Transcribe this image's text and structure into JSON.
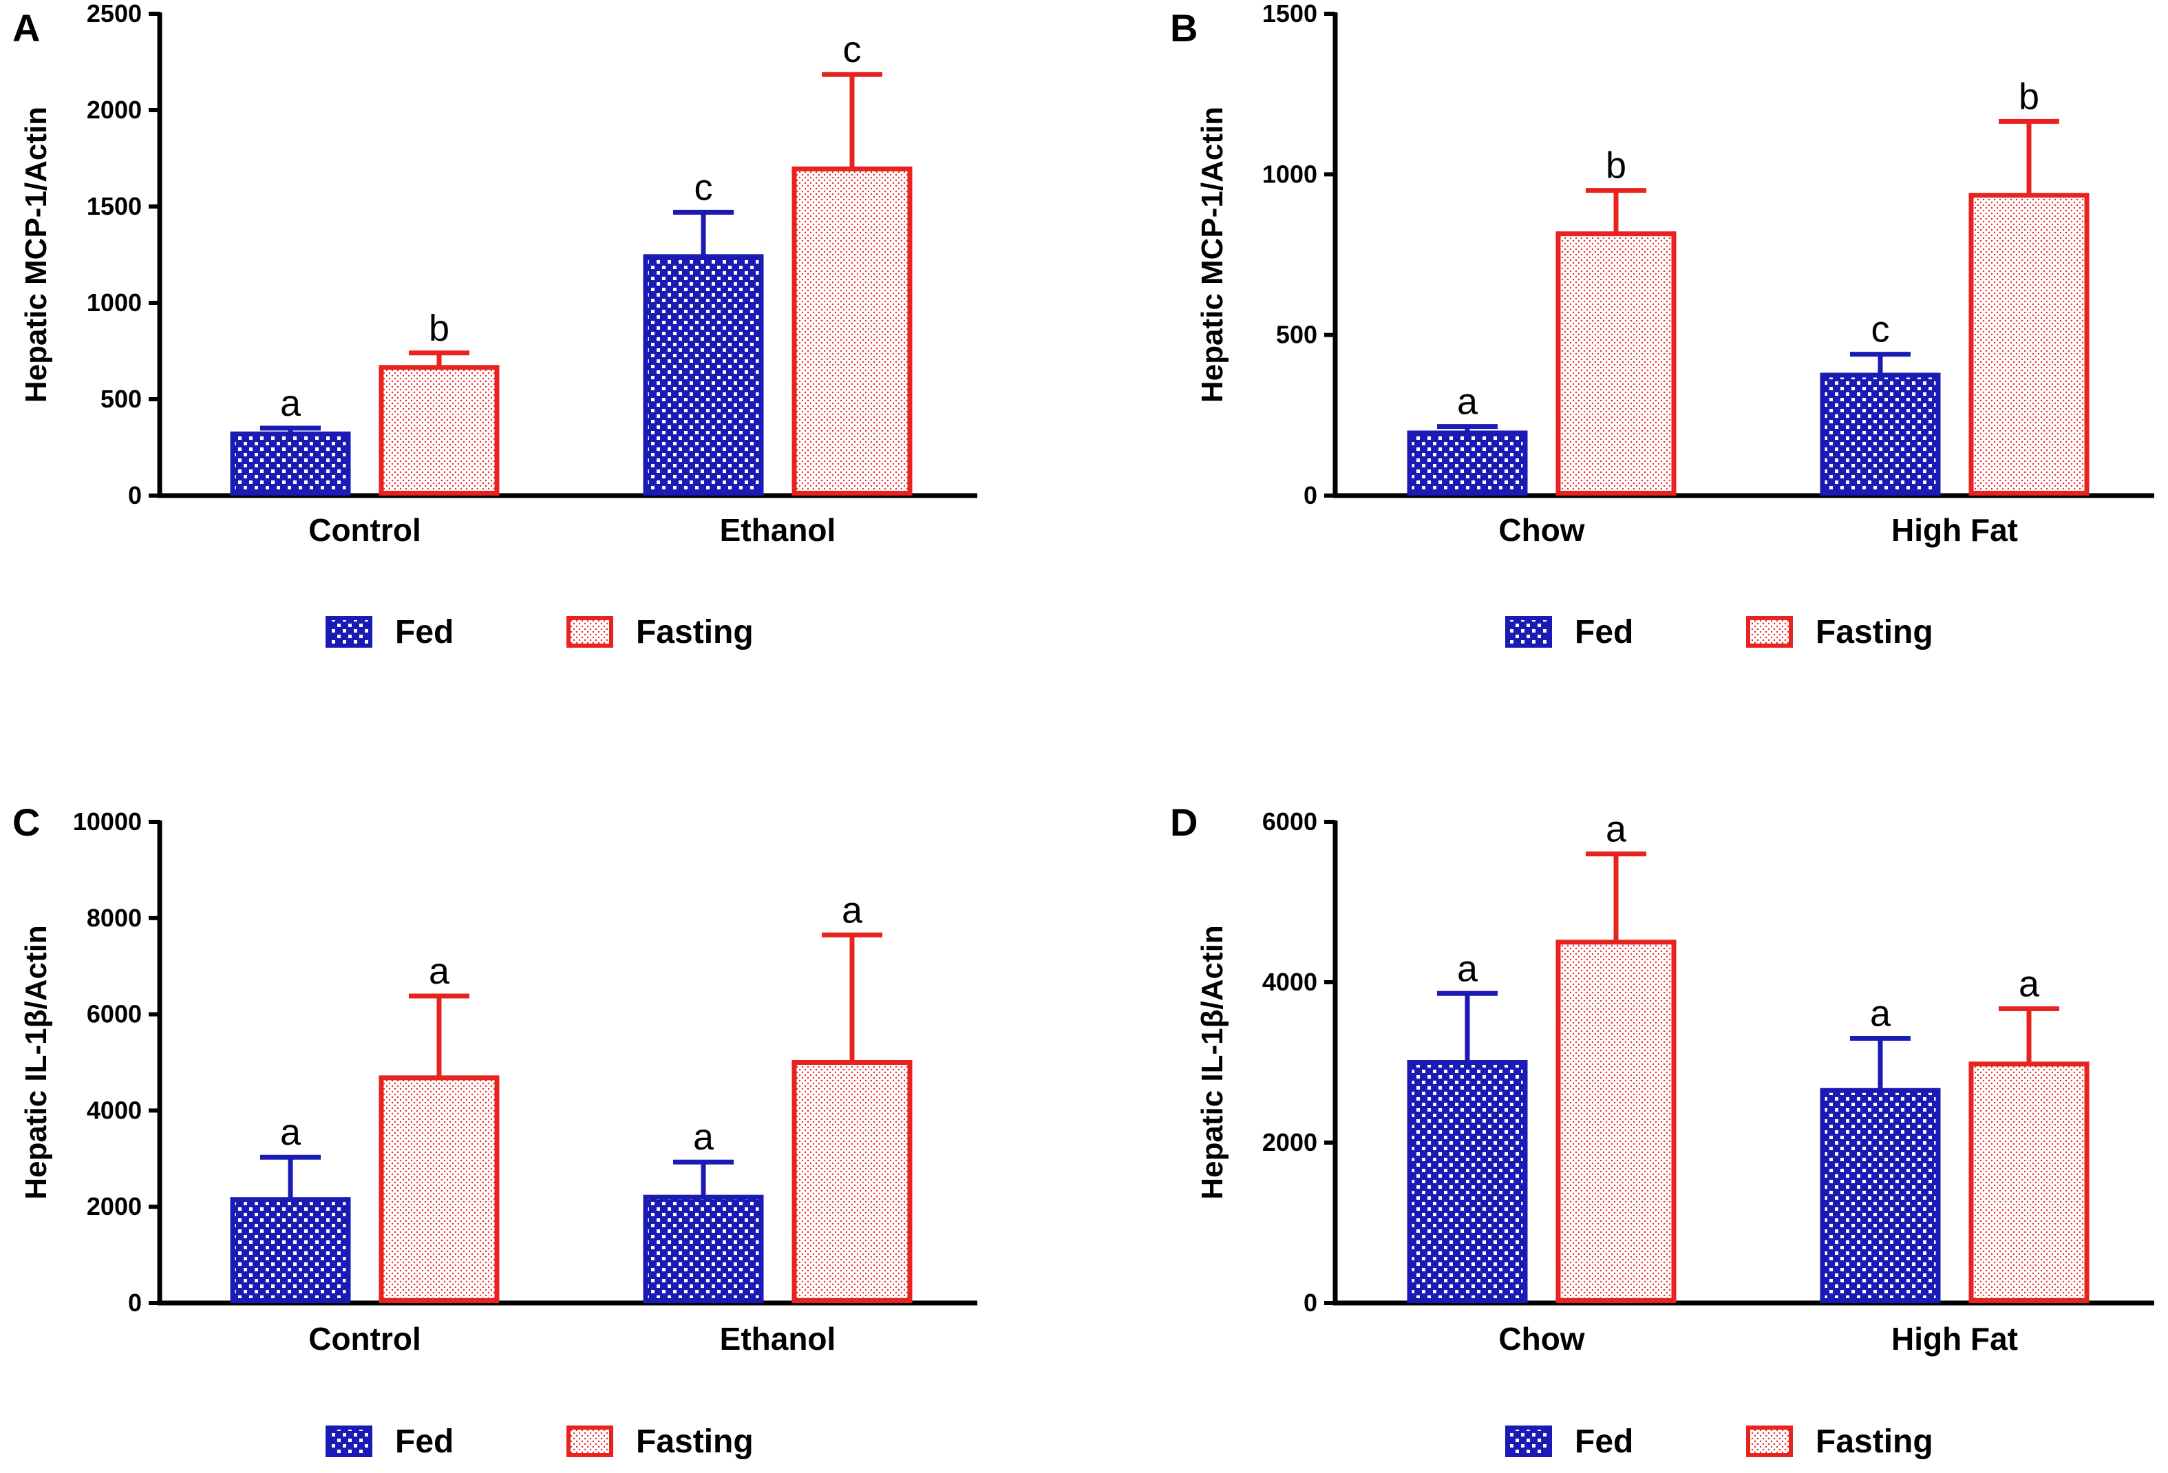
{
  "legend": {
    "fed": "Fed",
    "fasting": "Fasting"
  },
  "colors": {
    "fed": "#1a1ab4",
    "fasting": "#e8231f",
    "fed_fill_light": "#ffffff",
    "fasting_fill_light": "#ffffff",
    "axis": "#000000"
  },
  "chart_data": [
    {
      "panel": "A",
      "type": "bar",
      "title": "",
      "ylabel": "Hepatic MCP-1/Actin",
      "xlabel": "",
      "ylim": [
        0,
        2500
      ],
      "yticks": [
        0,
        500,
        1000,
        1500,
        2000,
        2500
      ],
      "categories": [
        "Control",
        "Ethanol"
      ],
      "series": [
        {
          "name": "Fed",
          "values": [
            320,
            1240
          ],
          "errors": [
            30,
            230
          ],
          "labels": [
            "a",
            "c"
          ]
        },
        {
          "name": "Fasting",
          "values": [
            665,
            1695
          ],
          "errors": [
            75,
            490
          ],
          "labels": [
            "b",
            "c"
          ]
        }
      ]
    },
    {
      "panel": "B",
      "type": "bar",
      "title": "",
      "ylabel": "Hepatic MCP-1/Actin",
      "xlabel": "",
      "ylim": [
        0,
        1500
      ],
      "yticks": [
        0,
        500,
        1000,
        1500
      ],
      "categories": [
        "Chow",
        "High Fat"
      ],
      "series": [
        {
          "name": "Fed",
          "values": [
            195,
            375
          ],
          "errors": [
            20,
            65
          ],
          "labels": [
            "a",
            "c"
          ]
        },
        {
          "name": "Fasting",
          "values": [
            815,
            935
          ],
          "errors": [
            135,
            230
          ],
          "labels": [
            "b",
            "b"
          ]
        }
      ]
    },
    {
      "panel": "C",
      "type": "bar",
      "title": "",
      "ylabel": "Hepatic IL-1β/Actin",
      "xlabel": "",
      "ylim": [
        0,
        10000
      ],
      "yticks": [
        0,
        2000,
        4000,
        6000,
        8000,
        10000
      ],
      "categories": [
        "Control",
        "Ethanol"
      ],
      "series": [
        {
          "name": "Fed",
          "values": [
            2150,
            2200
          ],
          "errors": [
            880,
            730
          ],
          "labels": [
            "a",
            "a"
          ]
        },
        {
          "name": "Fasting",
          "values": [
            4680,
            5000
          ],
          "errors": [
            1700,
            2650
          ],
          "labels": [
            "a",
            "a"
          ]
        }
      ]
    },
    {
      "panel": "D",
      "type": "bar",
      "title": "",
      "ylabel": "Hepatic IL-1β/Actin",
      "xlabel": "",
      "ylim": [
        0,
        6000
      ],
      "yticks": [
        0,
        2000,
        4000,
        6000
      ],
      "categories": [
        "Chow",
        "High Fat"
      ],
      "series": [
        {
          "name": "Fed",
          "values": [
            3000,
            2650
          ],
          "errors": [
            860,
            650
          ],
          "labels": [
            "a",
            "a"
          ]
        },
        {
          "name": "Fasting",
          "values": [
            4500,
            2980
          ],
          "errors": [
            1100,
            690
          ],
          "labels": [
            "a",
            "a"
          ]
        }
      ]
    }
  ]
}
